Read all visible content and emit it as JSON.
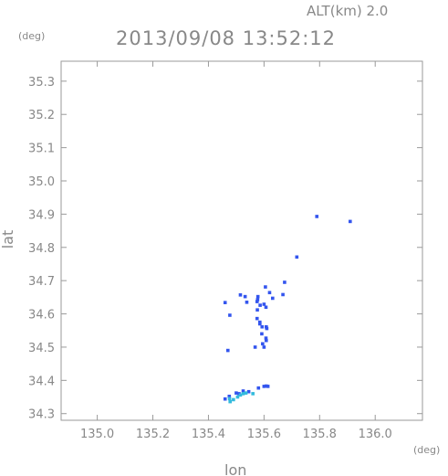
{
  "alt_label": "ALT(km) 2.0",
  "timestamp": "2013/09/08 13:52:12",
  "colors": {
    "frame": "#9a9a9a",
    "text": "#888888",
    "echo_blue": "#3355ee",
    "echo_cyan": "#33bbdd"
  },
  "chart_data": {
    "type": "scatter",
    "title": "2013/09/08 13:52:12",
    "xlabel": "lon",
    "ylabel": "lat",
    "xunit": "(deg)",
    "yunit": "(deg)",
    "xlim": [
      134.87,
      136.17
    ],
    "ylim": [
      34.28,
      35.36
    ],
    "xticks": [
      135.0,
      135.2,
      135.4,
      135.6,
      135.8,
      136.0
    ],
    "yticks": [
      34.3,
      34.4,
      34.5,
      34.6,
      34.7,
      34.8,
      34.9,
      35.0,
      35.1,
      35.2,
      35.3
    ],
    "xtick_labels": [
      "135.0",
      "135.2",
      "135.4",
      "135.6",
      "135.8",
      "136.0"
    ],
    "ytick_labels": [
      "34.3",
      "34.4",
      "34.5",
      "34.6",
      "34.7",
      "34.8",
      "34.9",
      "35.0",
      "35.1",
      "35.2",
      "35.3"
    ],
    "grid": false,
    "series": [
      {
        "color": "#3355ee",
        "points": [
          [
            135.79,
            34.893
          ],
          [
            135.91,
            34.878
          ],
          [
            135.718,
            34.771
          ],
          [
            135.674,
            34.695
          ],
          [
            135.605,
            34.681
          ],
          [
            135.62,
            34.664
          ],
          [
            135.668,
            34.658
          ],
          [
            135.515,
            34.657
          ],
          [
            135.532,
            34.652
          ],
          [
            135.578,
            34.652
          ],
          [
            135.631,
            34.647
          ],
          [
            135.577,
            34.643
          ],
          [
            135.575,
            34.637
          ],
          [
            135.46,
            34.634
          ],
          [
            135.538,
            34.635
          ],
          [
            135.6,
            34.629
          ],
          [
            135.586,
            34.626
          ],
          [
            135.607,
            34.62
          ],
          [
            135.576,
            34.612
          ],
          [
            135.477,
            34.596
          ],
          [
            135.575,
            34.586
          ],
          [
            135.585,
            34.575
          ],
          [
            135.585,
            34.57
          ],
          [
            135.593,
            34.561
          ],
          [
            135.608,
            34.561
          ],
          [
            135.61,
            34.556
          ],
          [
            135.592,
            34.54
          ],
          [
            135.607,
            34.527
          ],
          [
            135.608,
            34.52
          ],
          [
            135.595,
            34.51
          ],
          [
            135.6,
            34.5
          ],
          [
            135.568,
            34.5
          ],
          [
            135.47,
            34.49
          ],
          [
            135.608,
            34.383
          ],
          [
            135.614,
            34.382
          ],
          [
            135.6,
            34.382
          ],
          [
            135.58,
            34.377
          ],
          [
            135.525,
            34.368
          ],
          [
            135.545,
            34.366
          ],
          [
            135.5,
            34.362
          ],
          [
            135.51,
            34.36
          ],
          [
            135.475,
            34.352
          ],
          [
            135.46,
            34.344
          ]
        ]
      },
      {
        "color": "#33bbdd",
        "points": [
          [
            135.476,
            34.345
          ],
          [
            135.49,
            34.342
          ],
          [
            135.505,
            34.35
          ],
          [
            135.515,
            34.356
          ],
          [
            135.525,
            34.36
          ],
          [
            135.535,
            34.362
          ],
          [
            135.56,
            34.36
          ],
          [
            135.478,
            34.336
          ]
        ]
      }
    ]
  }
}
